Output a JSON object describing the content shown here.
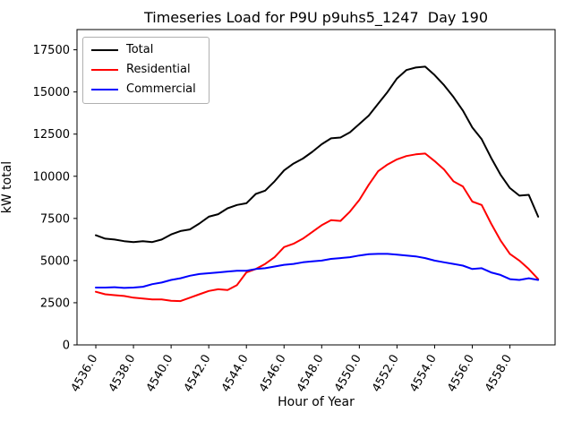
{
  "chart_data": {
    "type": "line",
    "title": "Timeseries Load for P9U p9uhs5_1247  Day 190",
    "xlabel": "Hour of Year",
    "ylabel": "kW total",
    "x": [
      4536.0,
      4536.5,
      4537.0,
      4537.5,
      4538.0,
      4538.5,
      4539.0,
      4539.5,
      4540.0,
      4540.5,
      4541.0,
      4541.5,
      4542.0,
      4542.5,
      4543.0,
      4543.5,
      4544.0,
      4544.5,
      4545.0,
      4545.5,
      4546.0,
      4546.5,
      4547.0,
      4547.5,
      4548.0,
      4548.5,
      4549.0,
      4549.5,
      4550.0,
      4550.5,
      4551.0,
      4551.5,
      4552.0,
      4552.5,
      4553.0,
      4553.5,
      4554.0,
      4554.5,
      4555.0,
      4555.5,
      4556.0,
      4556.5,
      4557.0,
      4557.5,
      4558.0,
      4558.5,
      4559.0,
      4559.5
    ],
    "series": [
      {
        "name": "Total",
        "color": "#000000",
        "values": [
          6500,
          6300,
          6250,
          6150,
          6100,
          6150,
          6100,
          6250,
          6550,
          6750,
          6850,
          7200,
          7600,
          7750,
          8100,
          8300,
          8400,
          8950,
          9150,
          9700,
          10350,
          10750,
          11050,
          11450,
          11900,
          12250,
          12300,
          12600,
          13100,
          13600,
          14300,
          15000,
          15800,
          16300,
          16450,
          16500,
          16000,
          15400,
          14700,
          13900,
          12900,
          12200,
          11100,
          10100,
          9300,
          8850,
          8900,
          7600
        ]
      },
      {
        "name": "Residential",
        "color": "#ff0000",
        "values": [
          3150,
          3000,
          2950,
          2900,
          2800,
          2750,
          2700,
          2700,
          2620,
          2600,
          2800,
          3000,
          3200,
          3300,
          3250,
          3550,
          4300,
          4500,
          4800,
          5200,
          5800,
          6000,
          6300,
          6700,
          7100,
          7400,
          7350,
          7900,
          8600,
          9500,
          10300,
          10700,
          11000,
          11200,
          11300,
          11350,
          10900,
          10400,
          9700,
          9400,
          8500,
          8300,
          7200,
          6200,
          5400,
          5000,
          4500,
          3900
        ]
      },
      {
        "name": "Commercial",
        "color": "#0000ff",
        "values": [
          3400,
          3400,
          3420,
          3380,
          3400,
          3450,
          3600,
          3700,
          3850,
          3950,
          4100,
          4200,
          4250,
          4300,
          4350,
          4400,
          4400,
          4500,
          4550,
          4650,
          4750,
          4800,
          4900,
          4950,
          5000,
          5100,
          5150,
          5200,
          5300,
          5380,
          5400,
          5400,
          5350,
          5300,
          5250,
          5150,
          5000,
          4900,
          4800,
          4700,
          4500,
          4550,
          4300,
          4150,
          3900,
          3850,
          3950,
          3850
        ]
      }
    ],
    "xlim": [
      4535.0,
      4560.4
    ],
    "ylim": [
      0,
      18700
    ],
    "xticks": [
      4536,
      4538,
      4540,
      4542,
      4544,
      4546,
      4548,
      4550,
      4552,
      4554,
      4556,
      4558
    ],
    "xtick_labels": [
      "4536.0",
      "4538.0",
      "4540.0",
      "4542.0",
      "4544.0",
      "4546.0",
      "4548.0",
      "4550.0",
      "4552.0",
      "4554.0",
      "4556.0",
      "4558.0"
    ],
    "yticks": [
      0,
      2500,
      5000,
      7500,
      10000,
      12500,
      15000,
      17500
    ],
    "ytick_labels": [
      "0",
      "2500",
      "5000",
      "7500",
      "10000",
      "12500",
      "15000",
      "17500"
    ],
    "grid": false,
    "legend": {
      "position": "upper left",
      "entries": [
        "Total",
        "Residential",
        "Commercial"
      ]
    }
  }
}
